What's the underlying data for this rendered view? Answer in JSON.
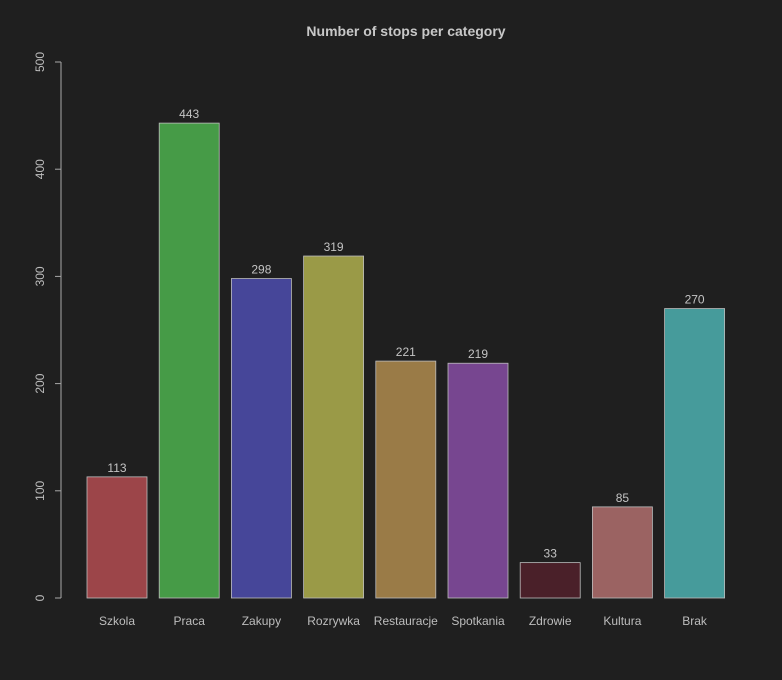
{
  "chart_data": {
    "type": "bar",
    "title": "Number of stops per category",
    "xlabel": "",
    "ylabel": "",
    "categories": [
      "Szkola",
      "Praca",
      "Zakupy",
      "Rozrywka",
      "Restauracje",
      "Spotkania",
      "Zdrowie",
      "Kultura",
      "Brak"
    ],
    "values": [
      113,
      443,
      298,
      319,
      221,
      219,
      33,
      85,
      270
    ],
    "value_labels": [
      "113",
      "443",
      "298",
      "319",
      "221",
      "219",
      "33",
      "85",
      "270"
    ],
    "colors": [
      "#9c4549",
      "#469b47",
      "#464699",
      "#9a9a47",
      "#9a7b47",
      "#774690",
      "#4a2029",
      "#9b6362",
      "#469b9b"
    ],
    "ylim": [
      0,
      500
    ],
    "y_ticks": [
      0,
      100,
      200,
      300,
      400,
      500
    ],
    "y_tick_labels": [
      "0",
      "100",
      "200",
      "300",
      "400",
      "500"
    ],
    "grid": false,
    "legend": "none"
  },
  "style": {
    "background": "#1f1f1f",
    "text_color": "#bdbdbd",
    "axis_color": "#a8a8a8",
    "bar_border": "#bdbdbd"
  }
}
